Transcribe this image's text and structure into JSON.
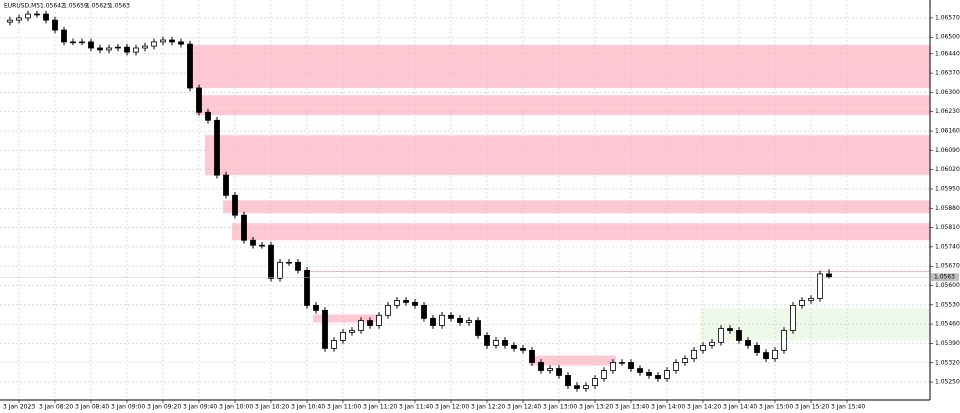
{
  "chart_data": {
    "type": "candlestick",
    "title": "EURUSD,M5",
    "open": [
      1.06555,
      1.06562,
      1.0657,
      1.06584,
      1.06584,
      1.06562,
      1.06526,
      1.06483,
      1.06483,
      1.06483,
      1.06461,
      1.06454,
      1.06461,
      1.06464,
      1.06446,
      1.06461,
      1.06468,
      1.06483,
      1.0649,
      1.06483,
      1.06475,
      1.06316,
      1.06228,
      1.06199,
      1.06,
      1.05927,
      1.05855,
      1.05764,
      1.05746,
      1.05746,
      1.05626,
      1.05684,
      1.05684,
      1.05655,
      1.05528,
      1.0551,
      1.05372,
      1.05401,
      1.0543,
      1.05437,
      1.05473,
      1.05455,
      1.05492,
      1.05528,
      1.05546,
      1.05539,
      1.05528,
      1.05481,
      1.05455,
      1.05492,
      1.05481,
      1.05466,
      1.05473,
      1.05419,
      1.05383,
      1.05401,
      1.05383,
      1.05372,
      1.05365,
      1.05321,
      1.05292,
      1.05299,
      1.05274,
      1.05237,
      1.05227,
      1.05237,
      1.05263,
      1.05292,
      1.05321,
      1.05321,
      1.05299,
      1.05285,
      1.05274,
      1.05263,
      1.05292,
      1.05321,
      1.05335,
      1.05365,
      1.05383,
      1.05394,
      1.05444,
      1.05437,
      1.05401,
      1.05383,
      1.05357,
      1.05335,
      1.05365,
      1.05437,
      1.05528,
      1.05546,
      1.05553,
      1.05642
    ],
    "high": [
      1.06574,
      1.06582,
      1.06596,
      1.06596,
      1.06596,
      1.06574,
      1.06538,
      1.06495,
      1.06495,
      1.06495,
      1.06473,
      1.06473,
      1.06476,
      1.06476,
      1.06473,
      1.0648,
      1.06495,
      1.06502,
      1.06502,
      1.06495,
      1.06487,
      1.06328,
      1.0624,
      1.06211,
      1.06012,
      1.05939,
      1.05867,
      1.05776,
      1.05758,
      1.05758,
      1.05696,
      1.05696,
      1.05696,
      1.05667,
      1.0554,
      1.05522,
      1.05413,
      1.05442,
      1.05449,
      1.05485,
      1.05485,
      1.05504,
      1.0554,
      1.05558,
      1.05558,
      1.05551,
      1.0554,
      1.05493,
      1.05504,
      1.05504,
      1.05493,
      1.05485,
      1.05485,
      1.05431,
      1.05413,
      1.05413,
      1.05395,
      1.05384,
      1.05377,
      1.05333,
      1.05311,
      1.05311,
      1.05286,
      1.05249,
      1.05249,
      1.05275,
      1.05304,
      1.05333,
      1.05333,
      1.05333,
      1.05311,
      1.05297,
      1.05286,
      1.05304,
      1.05333,
      1.05347,
      1.05377,
      1.05395,
      1.05406,
      1.05456,
      1.05456,
      1.05449,
      1.05413,
      1.05395,
      1.05369,
      1.05377,
      1.05449,
      1.0554,
      1.05558,
      1.05565,
      1.05654,
      1.05659
    ],
    "low": [
      1.06543,
      1.0655,
      1.06558,
      1.06572,
      1.0655,
      1.06514,
      1.06471,
      1.06471,
      1.06471,
      1.06449,
      1.06442,
      1.06442,
      1.06449,
      1.06434,
      1.06434,
      1.06449,
      1.06456,
      1.06471,
      1.06471,
      1.06463,
      1.06304,
      1.06216,
      1.06187,
      1.05988,
      1.05915,
      1.05843,
      1.05752,
      1.05734,
      1.05734,
      1.05614,
      1.05614,
      1.05672,
      1.05643,
      1.05516,
      1.05498,
      1.0536,
      1.0536,
      1.05389,
      1.05418,
      1.05425,
      1.05443,
      1.05443,
      1.0548,
      1.05516,
      1.05527,
      1.05516,
      1.05469,
      1.05443,
      1.05443,
      1.05469,
      1.05454,
      1.05454,
      1.05407,
      1.05371,
      1.05371,
      1.05371,
      1.0536,
      1.05353,
      1.05309,
      1.0528,
      1.0528,
      1.05262,
      1.05225,
      1.05215,
      1.05215,
      1.05225,
      1.05251,
      1.0528,
      1.05309,
      1.05287,
      1.05273,
      1.05262,
      1.05251,
      1.05251,
      1.0528,
      1.05309,
      1.05323,
      1.05353,
      1.05371,
      1.05382,
      1.05425,
      1.05389,
      1.05371,
      1.05345,
      1.05323,
      1.05323,
      1.05353,
      1.05425,
      1.05516,
      1.05534,
      1.05541,
      1.05625
    ],
    "close": [
      1.06562,
      1.0657,
      1.06584,
      1.06584,
      1.06562,
      1.06526,
      1.06483,
      1.06483,
      1.06483,
      1.06461,
      1.06454,
      1.06461,
      1.06464,
      1.06446,
      1.06461,
      1.06468,
      1.06483,
      1.0649,
      1.06483,
      1.06475,
      1.06316,
      1.06228,
      1.06199,
      1.06,
      1.05927,
      1.05855,
      1.05764,
      1.05746,
      1.05746,
      1.05626,
      1.05684,
      1.05684,
      1.05655,
      1.05528,
      1.0551,
      1.05372,
      1.05401,
      1.0543,
      1.05437,
      1.05473,
      1.05455,
      1.05492,
      1.05528,
      1.05546,
      1.05539,
      1.05528,
      1.05481,
      1.05455,
      1.05492,
      1.05481,
      1.05466,
      1.05473,
      1.05419,
      1.05383,
      1.05401,
      1.05383,
      1.05372,
      1.05365,
      1.05321,
      1.05292,
      1.05299,
      1.05274,
      1.05237,
      1.05227,
      1.05237,
      1.05263,
      1.05292,
      1.05321,
      1.05321,
      1.05299,
      1.05285,
      1.05274,
      1.05263,
      1.05292,
      1.05321,
      1.05335,
      1.05365,
      1.05383,
      1.05394,
      1.05444,
      1.05437,
      1.05401,
      1.05383,
      1.05357,
      1.05335,
      1.05365,
      1.05437,
      1.05528,
      1.05546,
      1.05553,
      1.05642,
      1.0563
    ],
    "bull_color": "#ffffff",
    "bear_color": "#000000",
    "zones": [
      {
        "start": 20,
        "top": 1.06472,
        "bottom": 1.06316,
        "color": "#ffc8d3"
      },
      {
        "start": 21,
        "top": 1.0629,
        "bottom": 1.06218,
        "color": "#ffc8d3"
      },
      {
        "start": 22,
        "top": 1.06145,
        "bottom": 1.06,
        "color": "#ffc8d3"
      },
      {
        "start": 24,
        "top": 1.05909,
        "bottom": 1.05862,
        "color": "#ffc8d3"
      },
      {
        "start": 25,
        "top": 1.05826,
        "bottom": 1.05764,
        "color": "#ffc8d3"
      },
      {
        "start": 34,
        "end": 41,
        "top": 1.05495,
        "bottom": 1.05466,
        "color": "#ffc8d3"
      },
      {
        "start": 58,
        "end": 67,
        "top": 1.05346,
        "bottom": 1.0531,
        "color": "#ffc8d3"
      },
      {
        "start": 77,
        "top": 1.05517,
        "bottom": 1.05401,
        "color": "#eef9ea"
      }
    ],
    "level": {
      "start": 33,
      "value": 1.05651,
      "color": "#f4b8c4"
    },
    "xlim": [
      -1.11,
      102.22
    ],
    "xticks": [
      {
        "value": 1,
        "label": "3 Jan 2023"
      },
      {
        "value": 5,
        "label": "3 Jan 08:20"
      },
      {
        "value": 9,
        "label": "3 Jan 08:40"
      },
      {
        "value": 13,
        "label": "3 Jan 09:00"
      },
      {
        "value": 17,
        "label": "3 Jan 09:20"
      },
      {
        "value": 21,
        "label": "3 Jan 09:40"
      },
      {
        "value": 25,
        "label": "3 Jan 10:00"
      },
      {
        "value": 29,
        "label": "3 Jan 10:20"
      },
      {
        "value": 33,
        "label": "3 Jan 10:40"
      },
      {
        "value": 37,
        "label": "3 Jan 11:00"
      },
      {
        "value": 41,
        "label": "3 Jan 11:20"
      },
      {
        "value": 45,
        "label": "3 Jan 11:40"
      },
      {
        "value": 49,
        "label": "3 Jan 12:00"
      },
      {
        "value": 53,
        "label": "3 Jan 12:20"
      },
      {
        "value": 57,
        "label": "3 Jan 12:40"
      },
      {
        "value": 61,
        "label": "3 Jan 13:00"
      },
      {
        "value": 65,
        "label": "3 Jan 13:20"
      },
      {
        "value": 69,
        "label": "3 Jan 13:40"
      },
      {
        "value": 73,
        "label": "3 Jan 14:00"
      },
      {
        "value": 77,
        "label": "3 Jan 14:20"
      },
      {
        "value": 81,
        "label": "3 Jan 14:40"
      },
      {
        "value": 85,
        "label": "3 Jan 15:00"
      },
      {
        "value": 89,
        "label": "3 Jan 15:20"
      },
      {
        "value": 93,
        "label": "3 Jan 15:40"
      }
    ],
    "ylim": [
      1.05185,
      1.06635
    ],
    "yticks": [
      {
        "value": 1.0657,
        "label": "1.06570"
      },
      {
        "value": 1.065,
        "label": "1.06500"
      },
      {
        "value": 1.0644,
        "label": "1.06440"
      },
      {
        "value": 1.0637,
        "label": "1.06370"
      },
      {
        "value": 1.063,
        "label": "1.06300"
      },
      {
        "value": 1.0623,
        "label": "1.06230"
      },
      {
        "value": 1.0616,
        "label": "1.06160"
      },
      {
        "value": 1.0609,
        "label": "1.06090"
      },
      {
        "value": 1.0602,
        "label": "1.06020"
      },
      {
        "value": 1.0595,
        "label": "1.05950"
      },
      {
        "value": 1.0588,
        "label": "1.05880"
      },
      {
        "value": 1.0581,
        "label": "1.05810"
      },
      {
        "value": 1.0574,
        "label": "1.05740"
      },
      {
        "value": 1.0567,
        "label": "1.05670"
      },
      {
        "value": 1.056,
        "label": "1.05600"
      },
      {
        "value": 1.0553,
        "label": "1.05530"
      },
      {
        "value": 1.0546,
        "label": "1.05460"
      },
      {
        "value": 1.0539,
        "label": "1.05390"
      },
      {
        "value": 1.0532,
        "label": "1.05320"
      },
      {
        "value": 1.0525,
        "label": "1.05250"
      }
    ],
    "grid": true
  }
}
